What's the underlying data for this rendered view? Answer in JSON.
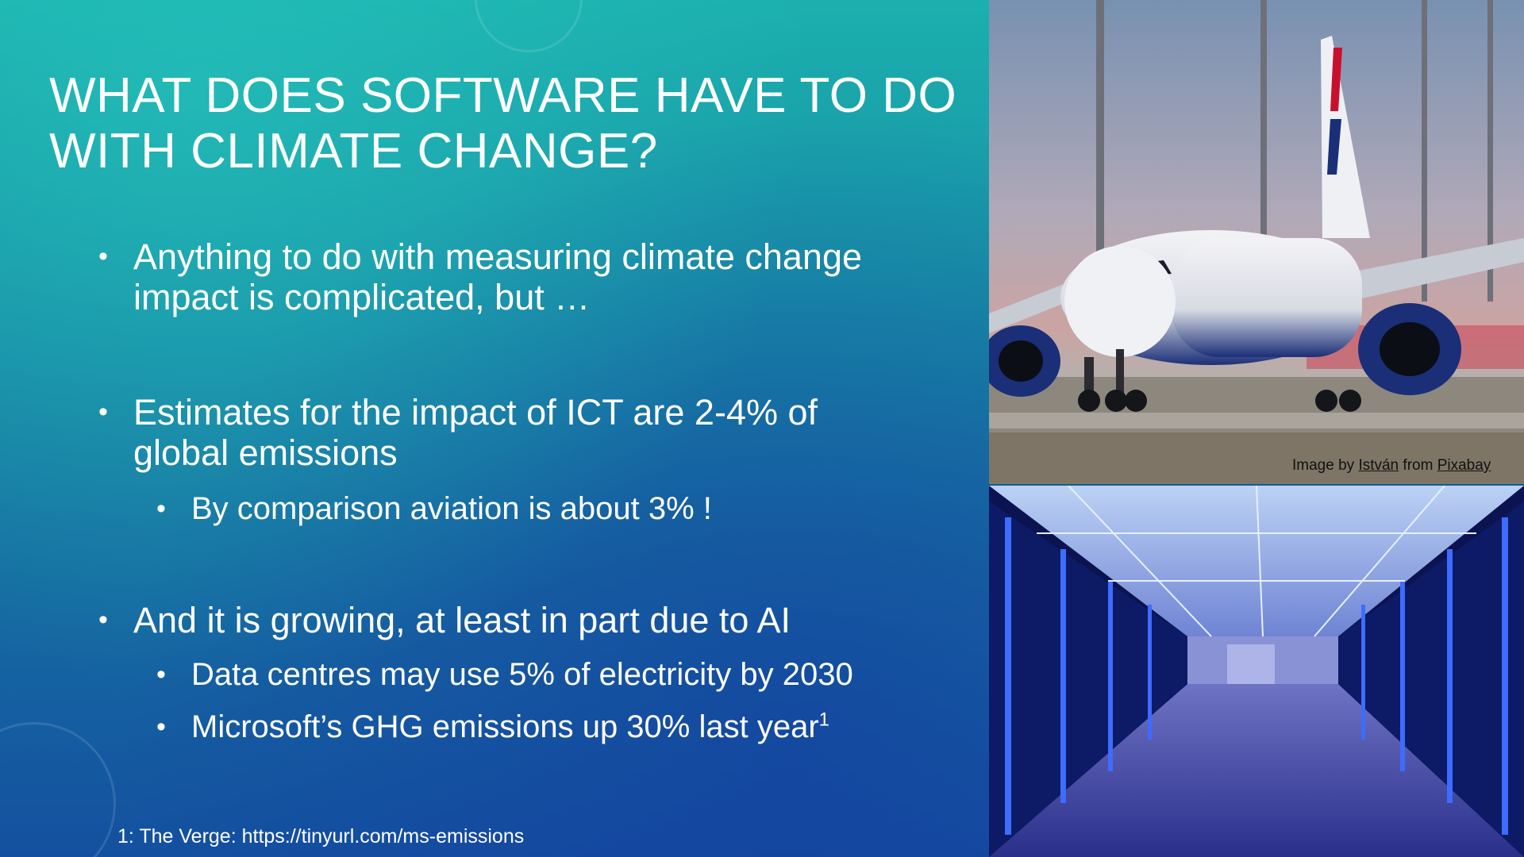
{
  "slide": {
    "title_line1": "WHAT DOES SOFTWARE HAVE TO DO",
    "title_line2": "WITH CLIMATE CHANGE?",
    "bullets": [
      {
        "line1": "Anything to do with measuring climate change",
        "line2": "impact is complicated, but …"
      },
      {
        "line1": "Estimates for the impact of ICT are 2-4% of",
        "line2": "global emissions"
      },
      {
        "text": "By comparison aviation is about 3% !"
      },
      {
        "text": "And it is growing, at least in part due to AI"
      },
      {
        "text": "Data centres may use 5% of electricity by 2030"
      },
      {
        "text": "Microsoft’s GHG emissions up 30% last year",
        "sup": "1"
      }
    ],
    "bullet_glyph": "•",
    "footnote": "1: The Verge: https://tinyurl.com/ms-emissions"
  },
  "images": {
    "top": {
      "icon": "airplane-photo"
    },
    "bottom": {
      "icon": "datacenter-photo"
    },
    "caption": {
      "prefix": "Image by",
      "author": "István",
      "middle": "from",
      "source": "Pixabay"
    }
  },
  "colors": {
    "bg_top": "#1bb0ad",
    "bg_bottom": "#1450a0",
    "text": "#ffffff"
  }
}
